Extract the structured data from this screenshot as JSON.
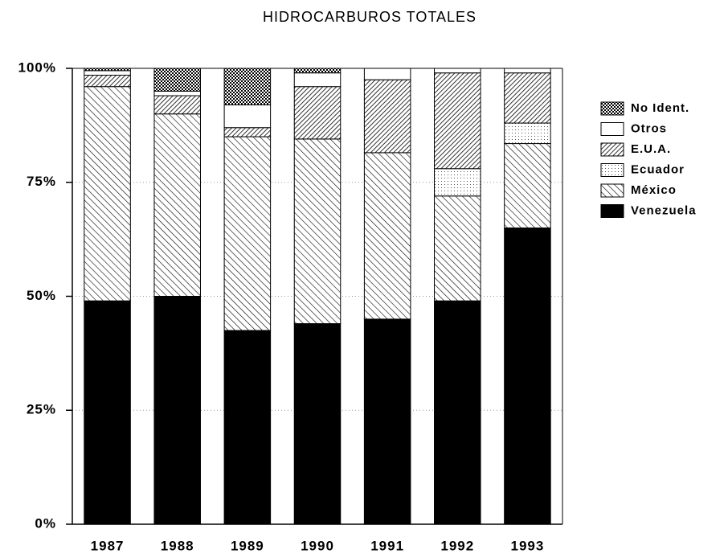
{
  "chart_data": {
    "type": "stacked-bar",
    "title": "HIDROCARBUROS TOTALES",
    "categories": [
      "1987",
      "1988",
      "1989",
      "1990",
      "1991",
      "1992",
      "1993"
    ],
    "series": [
      {
        "name": "Venezuela",
        "color": "#000000",
        "pattern": "solid",
        "values": [
          49,
          50,
          42.5,
          44,
          45,
          49,
          65
        ]
      },
      {
        "name": "México",
        "color": "#000000",
        "pattern": "hatch",
        "values": [
          47,
          40,
          42.5,
          40.5,
          36.5,
          23,
          18.5
        ]
      },
      {
        "name": "Ecuador",
        "color": "#000000",
        "pattern": "dots",
        "values": [
          0,
          0,
          0,
          0,
          0,
          6,
          4.5
        ]
      },
      {
        "name": "E.U.A.",
        "color": "#000000",
        "pattern": "dense-hatch",
        "values": [
          2.5,
          4,
          2,
          11.5,
          16,
          21,
          11
        ]
      },
      {
        "name": "Otros",
        "color": "#000000",
        "pattern": "none",
        "values": [
          1,
          1,
          5,
          3,
          2.5,
          1,
          1
        ]
      },
      {
        "name": "No Ident.",
        "color": "#000000",
        "pattern": "crosshatch",
        "values": [
          0.5,
          5,
          8,
          1,
          0,
          0,
          0
        ]
      }
    ],
    "ylim": [
      0,
      100
    ],
    "yticks": [
      {
        "value": 0,
        "label": "0%"
      },
      {
        "value": 25,
        "label": "25%"
      },
      {
        "value": 50,
        "label": "50%"
      },
      {
        "value": 75,
        "label": "75%"
      },
      {
        "value": 100,
        "label": "100%"
      }
    ],
    "grid": true,
    "legend": "right"
  }
}
